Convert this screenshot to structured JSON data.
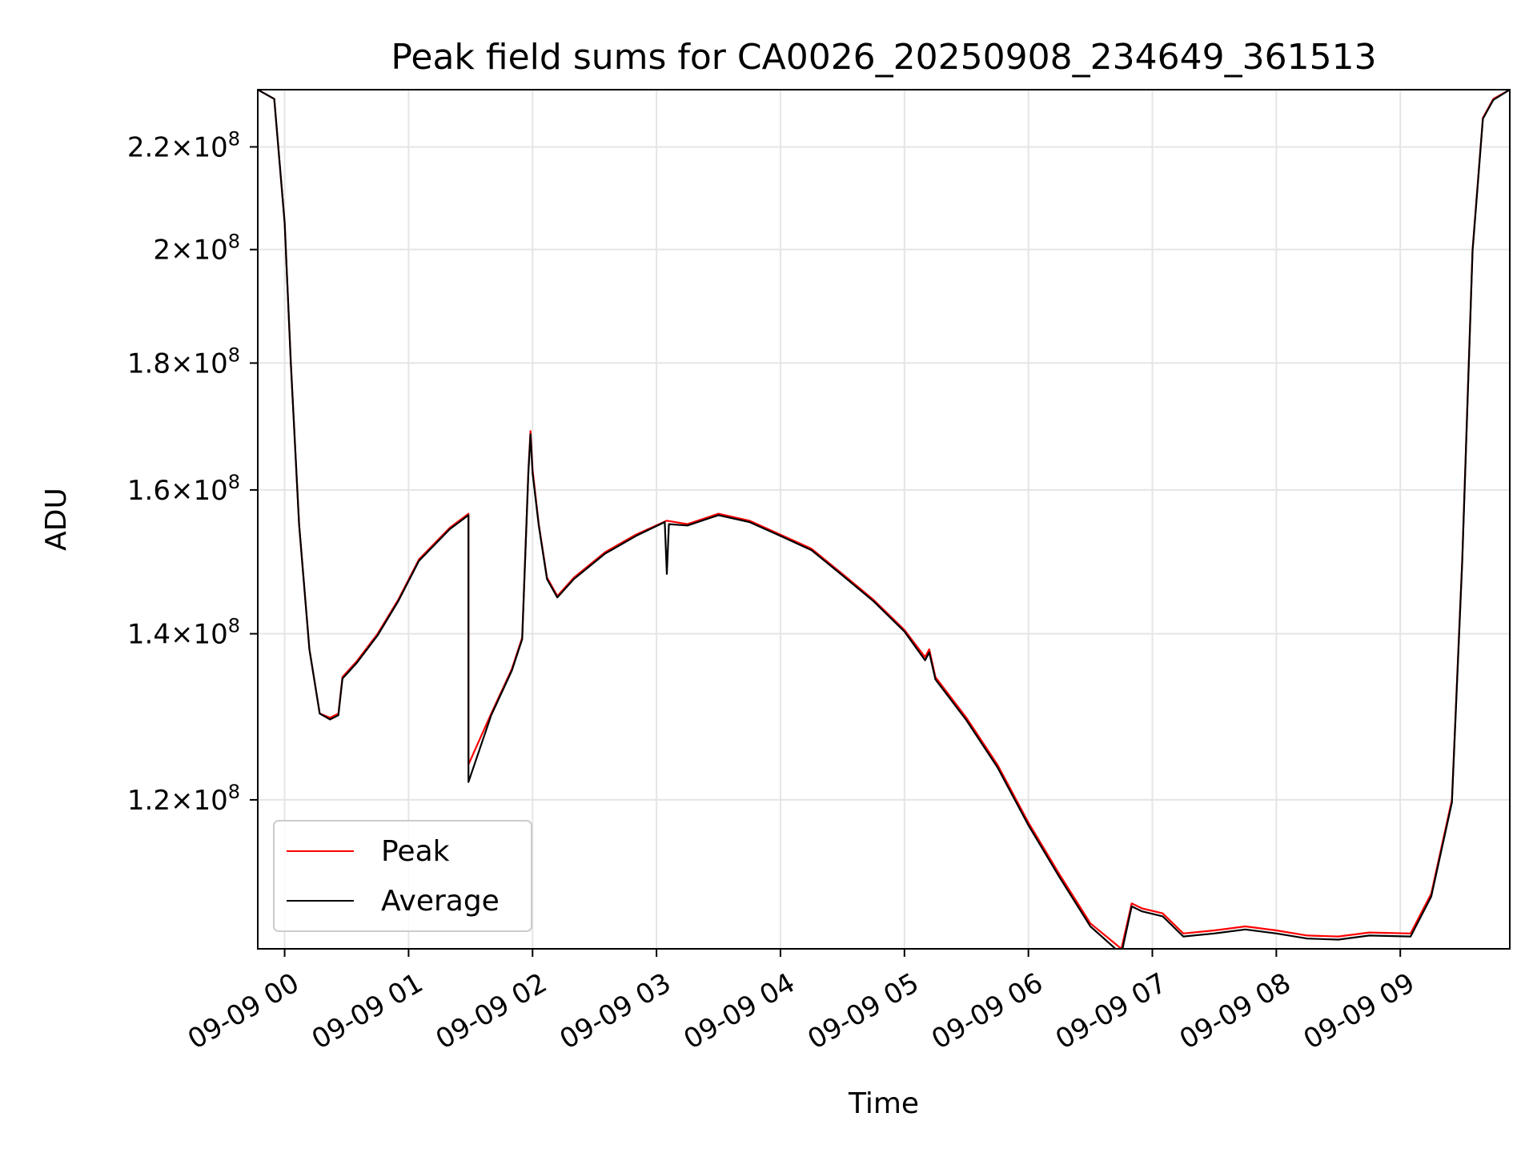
{
  "chart_data": {
    "type": "line",
    "title": "Peak field sums for CA0026_20250908_234649_361513",
    "xlabel": "Time",
    "ylabel": "ADU",
    "yscale": "log",
    "ylim": [
      104500000,
      232000000
    ],
    "xlim": [
      "09-08 23:47",
      "09-09 09:53"
    ],
    "grid": true,
    "legend_position": "lower-left",
    "x_ticks": [
      {
        "time": "09-09 00:00",
        "label": "09-09 00"
      },
      {
        "time": "09-09 01:00",
        "label": "09-09 01"
      },
      {
        "time": "09-09 02:00",
        "label": "09-09 02"
      },
      {
        "time": "09-09 03:00",
        "label": "09-09 03"
      },
      {
        "time": "09-09 04:00",
        "label": "09-09 04"
      },
      {
        "time": "09-09 05:00",
        "label": "09-09 05"
      },
      {
        "time": "09-09 06:00",
        "label": "09-09 06"
      },
      {
        "time": "09-09 07:00",
        "label": "09-09 07"
      },
      {
        "time": "09-09 08:00",
        "label": "09-09 08"
      },
      {
        "time": "09-09 09:00",
        "label": "09-09 09"
      }
    ],
    "y_ticks": [
      {
        "value": 120000000,
        "mantissa": "1.2",
        "exp": "8"
      },
      {
        "value": 140000000,
        "mantissa": "1.4",
        "exp": "8"
      },
      {
        "value": 160000000,
        "mantissa": "1.6",
        "exp": "8"
      },
      {
        "value": 180000000,
        "mantissa": "1.8",
        "exp": "8"
      },
      {
        "value": 200000000,
        "mantissa": "2",
        "exp": "8"
      },
      {
        "value": 220000000,
        "mantissa": "2.2",
        "exp": "8"
      }
    ],
    "series": [
      {
        "name": "Peak",
        "color": "#ff0000",
        "points": [
          [
            "09-08 23:47",
            232000000
          ],
          [
            "09-08 23:55",
            230000000
          ],
          [
            "09-09 00:00",
            205000000
          ],
          [
            "09-09 00:03",
            180000000
          ],
          [
            "09-09 00:07",
            155000000
          ],
          [
            "09-09 00:12",
            138000000
          ],
          [
            "09-09 00:17",
            130000000
          ],
          [
            "09-09 00:22",
            129500000
          ],
          [
            "09-09 00:26",
            130000000
          ],
          [
            "09-09 00:28",
            134500000
          ],
          [
            "09-09 00:35",
            136500000
          ],
          [
            "09-09 00:45",
            140000000
          ],
          [
            "09-09 00:55",
            144500000
          ],
          [
            "09-09 01:05",
            150000000
          ],
          [
            "09-09 01:20",
            154500000
          ],
          [
            "09-09 01:29",
            156500000
          ],
          [
            "09-09 01:29",
            124000000
          ],
          [
            "09-09 01:40",
            130000000
          ],
          [
            "09-09 01:50",
            135500000
          ],
          [
            "09-09 01:55",
            139500000
          ],
          [
            "09-09 01:58",
            163000000
          ],
          [
            "09-09 01:59",
            169000000
          ],
          [
            "09-09 02:00",
            163000000
          ],
          [
            "09-09 02:03",
            155000000
          ],
          [
            "09-09 02:07",
            147500000
          ],
          [
            "09-09 02:12",
            145000000
          ],
          [
            "09-09 02:20",
            147500000
          ],
          [
            "09-09 02:35",
            151000000
          ],
          [
            "09-09 02:50",
            153500000
          ],
          [
            "09-09 03:05",
            155500000
          ],
          [
            "09-09 03:15",
            155000000
          ],
          [
            "09-09 03:30",
            156500000
          ],
          [
            "09-09 03:45",
            155500000
          ],
          [
            "09-09 04:00",
            153500000
          ],
          [
            "09-09 04:15",
            151500000
          ],
          [
            "09-09 04:30",
            148000000
          ],
          [
            "09-09 04:45",
            144500000
          ],
          [
            "09-09 05:00",
            140500000
          ],
          [
            "09-09 05:10",
            137000000
          ],
          [
            "09-09 05:12",
            138000000
          ],
          [
            "09-09 05:15",
            134500000
          ],
          [
            "09-09 05:30",
            129500000
          ],
          [
            "09-09 05:45",
            124000000
          ],
          [
            "09-09 06:00",
            117500000
          ],
          [
            "09-09 06:15",
            112000000
          ],
          [
            "09-09 06:30",
            107000000
          ],
          [
            "09-09 06:45",
            104500000
          ],
          [
            "09-09 06:50",
            109000000
          ],
          [
            "09-09 06:55",
            108500000
          ],
          [
            "09-09 07:05",
            108000000
          ],
          [
            "09-09 07:15",
            106000000
          ],
          [
            "09-09 07:30",
            106300000
          ],
          [
            "09-09 07:45",
            106700000
          ],
          [
            "09-09 08:00",
            106300000
          ],
          [
            "09-09 08:15",
            105800000
          ],
          [
            "09-09 08:30",
            105700000
          ],
          [
            "09-09 08:45",
            106100000
          ],
          [
            "09-09 09:05",
            106000000
          ],
          [
            "09-09 09:15",
            110000000
          ],
          [
            "09-09 09:25",
            120000000
          ],
          [
            "09-09 09:30",
            150000000
          ],
          [
            "09-09 09:35",
            200000000
          ],
          [
            "09-09 09:40",
            226000000
          ],
          [
            "09-09 09:45",
            230000000
          ],
          [
            "09-09 09:53",
            232000000
          ]
        ]
      },
      {
        "name": "Average",
        "color": "#000000",
        "points": [
          [
            "09-08 23:47",
            232000000
          ],
          [
            "09-08 23:55",
            230000000
          ],
          [
            "09-09 00:00",
            205000000
          ],
          [
            "09-09 00:03",
            180000000
          ],
          [
            "09-09 00:07",
            155000000
          ],
          [
            "09-09 00:12",
            138000000
          ],
          [
            "09-09 00:17",
            130000000
          ],
          [
            "09-09 00:22",
            129300000
          ],
          [
            "09-09 00:26",
            129800000
          ],
          [
            "09-09 00:28",
            134300000
          ],
          [
            "09-09 00:35",
            136300000
          ],
          [
            "09-09 00:45",
            139800000
          ],
          [
            "09-09 00:55",
            144300000
          ],
          [
            "09-09 01:05",
            149800000
          ],
          [
            "09-09 01:20",
            154300000
          ],
          [
            "09-09 01:29",
            156300000
          ],
          [
            "09-09 01:29",
            122000000
          ],
          [
            "09-09 01:40",
            129800000
          ],
          [
            "09-09 01:50",
            135300000
          ],
          [
            "09-09 01:55",
            139300000
          ],
          [
            "09-09 01:58",
            162800000
          ],
          [
            "09-09 01:59",
            168500000
          ],
          [
            "09-09 02:00",
            162500000
          ],
          [
            "09-09 02:03",
            154800000
          ],
          [
            "09-09 02:07",
            147300000
          ],
          [
            "09-09 02:12",
            144800000
          ],
          [
            "09-09 02:20",
            147300000
          ],
          [
            "09-09 02:35",
            150800000
          ],
          [
            "09-09 02:50",
            153300000
          ],
          [
            "09-09 03:04",
            155300000
          ],
          [
            "09-09 03:05",
            148000000
          ],
          [
            "09-09 03:06",
            155000000
          ],
          [
            "09-09 03:15",
            154800000
          ],
          [
            "09-09 03:30",
            156300000
          ],
          [
            "09-09 03:45",
            155300000
          ],
          [
            "09-09 04:00",
            153300000
          ],
          [
            "09-09 04:15",
            151300000
          ],
          [
            "09-09 04:30",
            147800000
          ],
          [
            "09-09 04:45",
            144300000
          ],
          [
            "09-09 05:00",
            140300000
          ],
          [
            "09-09 05:10",
            136600000
          ],
          [
            "09-09 05:12",
            137600000
          ],
          [
            "09-09 05:15",
            134200000
          ],
          [
            "09-09 05:30",
            129200000
          ],
          [
            "09-09 05:45",
            123700000
          ],
          [
            "09-09 06:00",
            117200000
          ],
          [
            "09-09 06:15",
            111700000
          ],
          [
            "09-09 06:30",
            106700000
          ],
          [
            "09-09 06:45",
            104000000
          ],
          [
            "09-09 06:50",
            108700000
          ],
          [
            "09-09 06:55",
            108200000
          ],
          [
            "09-09 07:05",
            107700000
          ],
          [
            "09-09 07:15",
            105700000
          ],
          [
            "09-09 07:30",
            106000000
          ],
          [
            "09-09 07:45",
            106400000
          ],
          [
            "09-09 08:00",
            106000000
          ],
          [
            "09-09 08:15",
            105500000
          ],
          [
            "09-09 08:30",
            105400000
          ],
          [
            "09-09 08:45",
            105800000
          ],
          [
            "09-09 09:05",
            105700000
          ],
          [
            "09-09 09:15",
            109700000
          ],
          [
            "09-09 09:25",
            119700000
          ],
          [
            "09-09 09:30",
            149700000
          ],
          [
            "09-09 09:35",
            199700000
          ],
          [
            "09-09 09:40",
            225800000
          ],
          [
            "09-09 09:45",
            229800000
          ],
          [
            "09-09 09:53",
            232000000
          ]
        ]
      }
    ]
  }
}
